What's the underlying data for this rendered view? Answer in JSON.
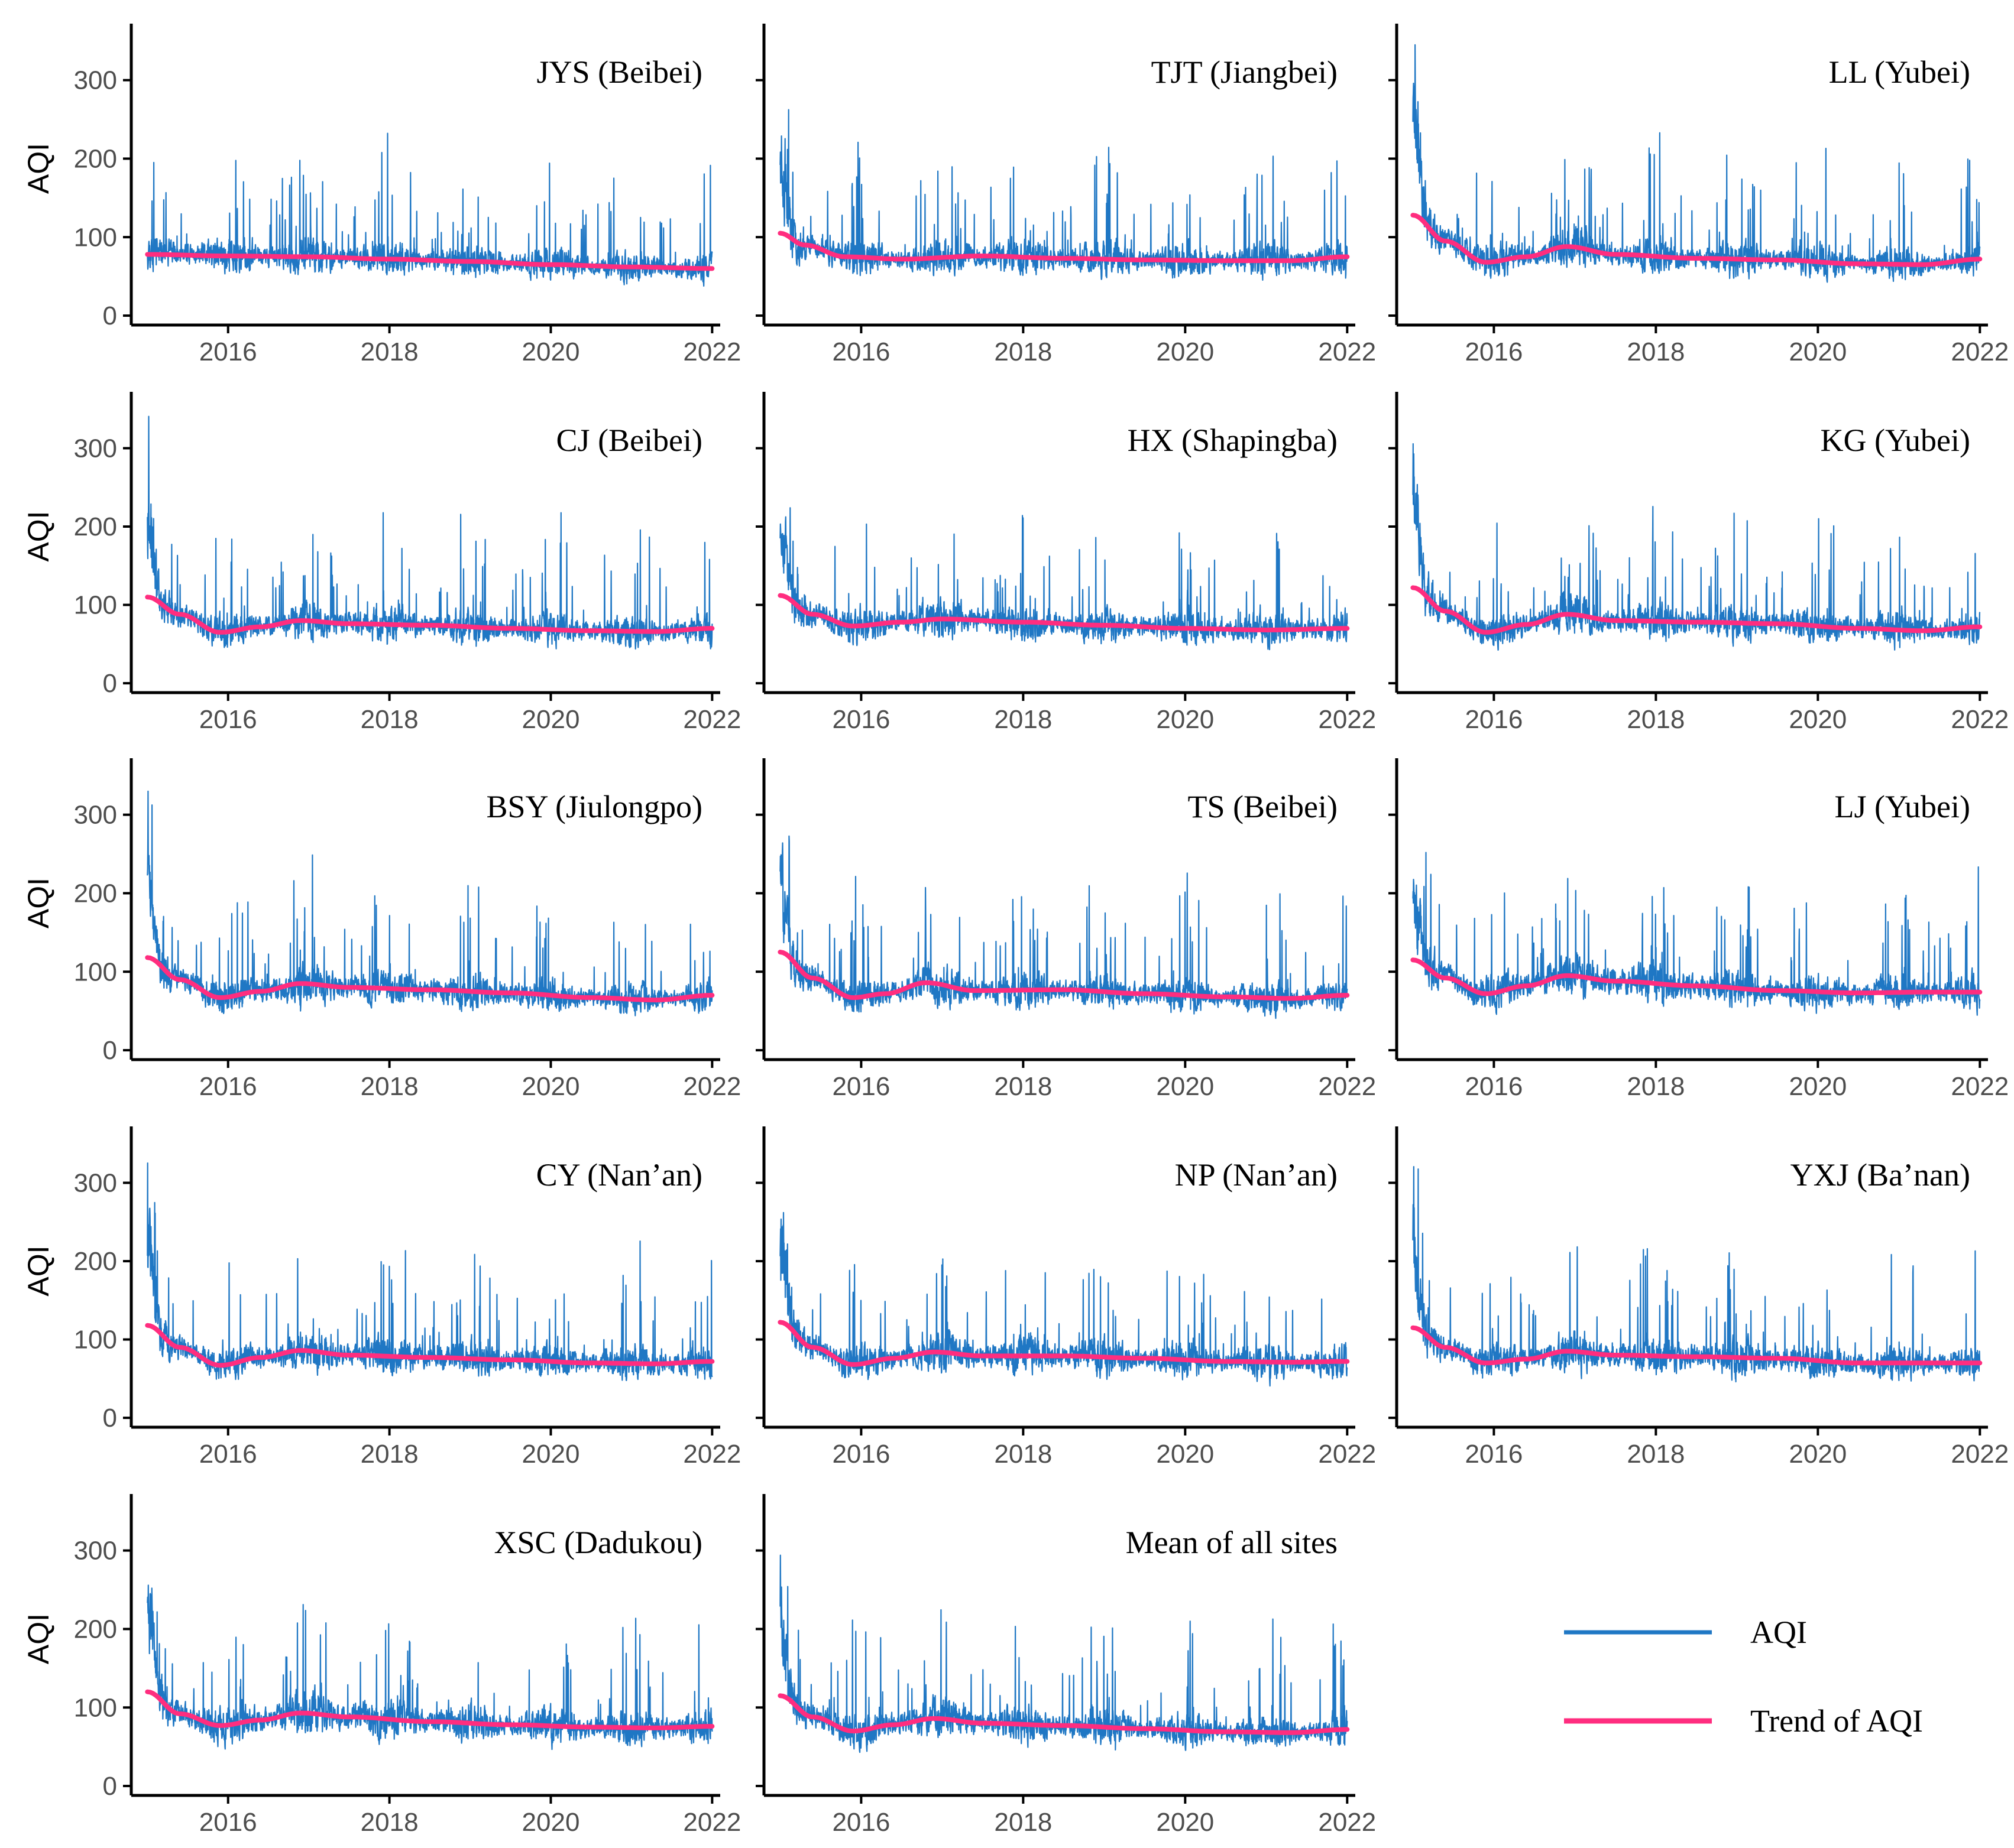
{
  "chart_data": {
    "type": "line",
    "ylabel": "AQI",
    "ylim": [
      0,
      350
    ],
    "xlim": [
      2014.8,
      2022.1
    ],
    "x_ticks": [
      "2016",
      "2018",
      "2020",
      "2022"
    ],
    "y_ticks": [
      "0",
      "100",
      "200",
      "300"
    ],
    "legend": {
      "position": "bottom-right",
      "entries": [
        {
          "name": "AQI",
          "color": "#1f77c4"
        },
        {
          "name": "Trend of AQI",
          "color": "#ff2d7f"
        }
      ]
    },
    "series_colors": {
      "aqi": "#1f77c4",
      "trend": "#ff2d7f"
    },
    "panels": [
      {
        "title": "JYS (Beibei)",
        "seed": 11,
        "start_peak": 90,
        "trend_x": [
          2015.0,
          2016.0,
          2017.0,
          2018.0,
          2019.0,
          2020.0,
          2021.0,
          2022.0
        ],
        "trend_y": [
          78,
          76,
          75,
          72,
          69,
          65,
          62,
          60
        ],
        "spike_scale": 1.0
      },
      {
        "title": "TJT (Jiangbei)",
        "seed": 23,
        "start_peak": 225,
        "trend_x": [
          2015.0,
          2015.3,
          2015.8,
          2016.5,
          2017.5,
          2018.5,
          2019.5,
          2020.5,
          2021.3,
          2022.0
        ],
        "trend_y": [
          105,
          90,
          75,
          72,
          76,
          73,
          71,
          70,
          70,
          75
        ],
        "spike_scale": 1.0
      },
      {
        "title": "LL (Yubei)",
        "seed": 37,
        "start_peak": 330,
        "trend_x": [
          2015.0,
          2015.4,
          2015.9,
          2016.4,
          2016.9,
          2017.5,
          2018.5,
          2019.5,
          2020.5,
          2021.3,
          2022.0
        ],
        "trend_y": [
          128,
          95,
          68,
          75,
          88,
          78,
          73,
          71,
          66,
          65,
          72
        ],
        "spike_scale": 1.0
      },
      {
        "title": "CJ (Beibei)",
        "seed": 41,
        "start_peak": 230,
        "trend_x": [
          2015.0,
          2015.4,
          2015.9,
          2016.4,
          2016.9,
          2017.5,
          2018.5,
          2019.5,
          2020.5,
          2021.3,
          2022.0
        ],
        "trend_y": [
          110,
          88,
          65,
          72,
          80,
          76,
          74,
          70,
          67,
          66,
          70
        ],
        "spike_scale": 1.0
      },
      {
        "title": "HX (Shapingba)",
        "seed": 53,
        "start_peak": 245,
        "trend_x": [
          2015.0,
          2015.4,
          2015.9,
          2016.5,
          2017.0,
          2018.0,
          2019.0,
          2020.0,
          2021.0,
          2022.0
        ],
        "trend_y": [
          112,
          88,
          73,
          78,
          82,
          78,
          74,
          70,
          68,
          70
        ],
        "spike_scale": 1.0
      },
      {
        "title": "KG (Yubei)",
        "seed": 61,
        "start_peak": 280,
        "trend_x": [
          2015.0,
          2015.4,
          2015.9,
          2016.4,
          2016.9,
          2017.5,
          2018.5,
          2019.5,
          2020.5,
          2021.3,
          2022.0
        ],
        "trend_y": [
          122,
          92,
          65,
          75,
          88,
          80,
          78,
          76,
          70,
          67,
          72
        ],
        "spike_scale": 1.0
      },
      {
        "title": "BSY (Jiulongpo)",
        "seed": 71,
        "start_peak": 270,
        "trend_x": [
          2015.0,
          2015.4,
          2015.9,
          2016.4,
          2016.9,
          2017.5,
          2018.5,
          2019.5,
          2020.5,
          2021.3,
          2022.0
        ],
        "trend_y": [
          118,
          90,
          67,
          75,
          85,
          80,
          77,
          73,
          67,
          64,
          70
        ],
        "spike_scale": 1.0
      },
      {
        "title": "TS (Beibei)",
        "seed": 83,
        "start_peak": 260,
        "trend_x": [
          2015.0,
          2015.4,
          2015.9,
          2016.3,
          2016.8,
          2017.4,
          2018.5,
          2019.5,
          2020.5,
          2021.3,
          2022.0
        ],
        "trend_y": [
          125,
          92,
          67,
          72,
          86,
          76,
          77,
          72,
          68,
          66,
          70
        ],
        "spike_scale": 1.0
      },
      {
        "title": "LJ (Yubei)",
        "seed": 97,
        "start_peak": 245,
        "trend_x": [
          2015.0,
          2015.4,
          2015.9,
          2016.4,
          2016.9,
          2017.5,
          2018.5,
          2019.5,
          2020.5,
          2021.3,
          2022.0
        ],
        "trend_y": [
          115,
          92,
          72,
          82,
          95,
          88,
          82,
          76,
          73,
          74,
          74
        ],
        "spike_scale": 1.0
      },
      {
        "title": "CY (Nan’an)",
        "seed": 103,
        "start_peak": 255,
        "trend_x": [
          2015.0,
          2015.4,
          2015.9,
          2016.4,
          2016.9,
          2017.5,
          2018.5,
          2019.5,
          2020.5,
          2021.3,
          2022.0
        ],
        "trend_y": [
          118,
          90,
          67,
          77,
          86,
          80,
          77,
          74,
          70,
          69,
          72
        ],
        "spike_scale": 1.0
      },
      {
        "title": "NP (Nan’an)",
        "seed": 113,
        "start_peak": 265,
        "trend_x": [
          2015.0,
          2015.4,
          2015.9,
          2016.4,
          2016.9,
          2017.5,
          2018.5,
          2019.5,
          2020.5,
          2021.3,
          2022.0
        ],
        "trend_y": [
          122,
          90,
          68,
          76,
          84,
          79,
          79,
          76,
          72,
          71,
          72
        ],
        "spike_scale": 1.0
      },
      {
        "title": "YXJ (Ba’nan)",
        "seed": 127,
        "start_peak": 250,
        "trend_x": [
          2015.0,
          2015.4,
          2015.9,
          2016.4,
          2016.9,
          2017.5,
          2018.5,
          2019.5,
          2020.5,
          2021.3,
          2022.0
        ],
        "trend_y": [
          115,
          90,
          70,
          75,
          85,
          80,
          78,
          76,
          70,
          70,
          70
        ],
        "spike_scale": 1.0
      },
      {
        "title": "XSC (Dadukou)",
        "seed": 131,
        "start_peak": 275,
        "trend_x": [
          2015.0,
          2015.4,
          2015.9,
          2016.4,
          2016.9,
          2017.5,
          2018.5,
          2019.5,
          2020.5,
          2021.3,
          2022.0
        ],
        "trend_y": [
          120,
          92,
          77,
          84,
          93,
          88,
          82,
          78,
          75,
          74,
          76
        ],
        "spike_scale": 1.0
      },
      {
        "title": "Mean of all sites",
        "seed": 139,
        "start_peak": 240,
        "trend_x": [
          2015.0,
          2015.4,
          2015.9,
          2016.4,
          2016.9,
          2017.5,
          2018.5,
          2019.5,
          2020.5,
          2021.3,
          2022.0
        ],
        "trend_y": [
          115,
          88,
          70,
          78,
          86,
          80,
          77,
          73,
          69,
          68,
          72
        ],
        "spike_scale": 1.0
      }
    ]
  }
}
